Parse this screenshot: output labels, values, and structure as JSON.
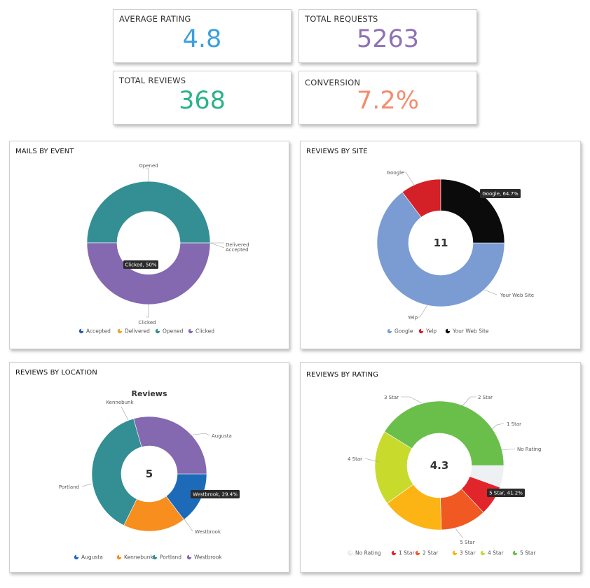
{
  "stats": {
    "avg_rating": {
      "label": "AVERAGE RATING",
      "value": "4.8",
      "color": "#3aa0dc"
    },
    "total_requests": {
      "label": "TOTAL REQUESTS",
      "value": "5263",
      "color": "#8f72b4"
    },
    "total_reviews": {
      "label": "TOTAL REVIEWS",
      "value": "368",
      "color": "#2db28a"
    },
    "conversion": {
      "label": "CONVERSION",
      "value": "7.2%",
      "color": "#f48c6c"
    }
  },
  "chart_data": [
    {
      "id": "mails",
      "type": "pie",
      "title": "MAILS BY EVENT",
      "categories": [
        "Accepted",
        "Delivered",
        "Opened",
        "Clicked"
      ],
      "values": [
        0.01,
        0.01,
        50,
        50
      ],
      "colors": [
        "#2a5caa",
        "#f0a030",
        "#338f94",
        "#8468b0"
      ],
      "legend": [
        "Accepted",
        "Delivered",
        "Opened",
        "Clicked"
      ],
      "tooltip": "Clicked, 50%",
      "center_text": "",
      "legend_position": "bottom"
    },
    {
      "id": "site",
      "type": "pie",
      "title": "REVIEWS BY SITE",
      "categories": [
        "Google",
        "Yelp",
        "Your Web Site"
      ],
      "values": [
        64.7,
        10.3,
        25.0
      ],
      "colors": [
        "#7a9cd3",
        "#d42127",
        "#0b0b0b"
      ],
      "legend": [
        "Google",
        "Yelp",
        "Your Web Site"
      ],
      "tooltip": "Google, 64.7%",
      "center_text": "11",
      "legend_position": "bottom"
    },
    {
      "id": "location",
      "type": "pie",
      "title": "REVIEWS BY LOCATION",
      "subtitle": "Reviews",
      "categories": [
        "Augusta",
        "Kennebunk",
        "Portland",
        "Westbrook"
      ],
      "values": [
        14.7,
        17.6,
        38.3,
        29.4
      ],
      "colors": [
        "#1d6ab8",
        "#f78e1e",
        "#338f94",
        "#8468b0"
      ],
      "legend": [
        "Augusta",
        "Kennebunk",
        "Portland",
        "Westbrook"
      ],
      "tooltip": "Westbrook, 29.4%",
      "center_text": "5",
      "legend_position": "bottom"
    },
    {
      "id": "rating",
      "type": "pie",
      "title": "REVIEWS BY RATING",
      "categories": [
        "No Rating",
        "1 Star",
        "2 Star",
        "3 Star",
        "4 Star",
        "5 Star"
      ],
      "values": [
        5.5,
        7.5,
        11.5,
        15.5,
        18.8,
        41.2
      ],
      "colors": [
        "#edf1f4",
        "#e2242b",
        "#f05a22",
        "#fcb414",
        "#c8da2c",
        "#6abf4b"
      ],
      "legend": [
        "No Rating",
        "1 Star",
        "2 Star",
        "3 Star",
        "4 Star",
        "5 Star"
      ],
      "tooltip": "5 Star, 41.2%",
      "center_text": "4.3",
      "legend_position": "bottom"
    }
  ]
}
